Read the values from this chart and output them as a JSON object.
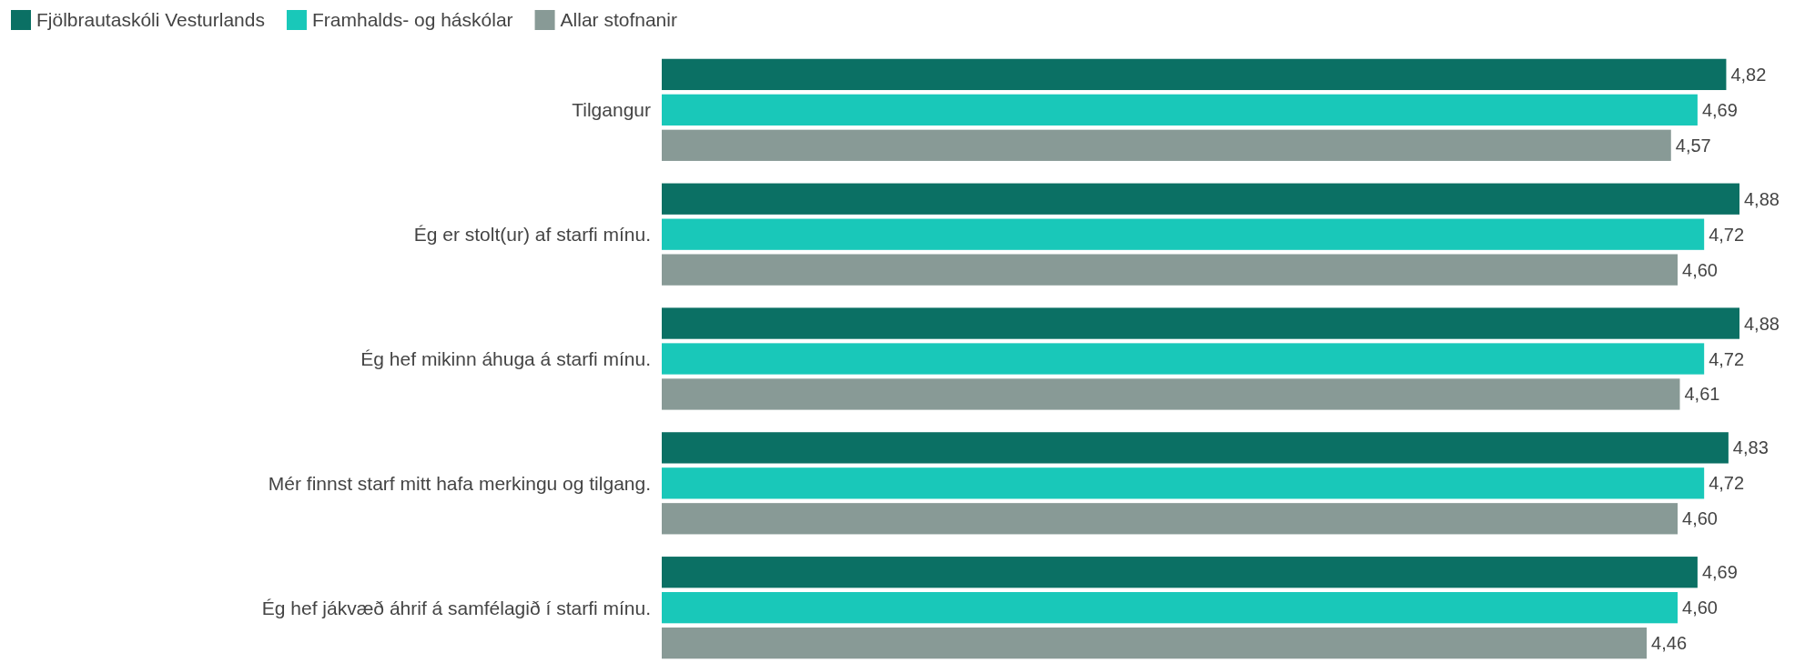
{
  "chart_data": {
    "type": "bar",
    "orientation": "horizontal",
    "categories": [
      "Tilgangur",
      "Ég er stolt(ur) af starfi mínu.",
      "Ég hef mikinn áhuga á starfi mínu.",
      "Mér finnst starf mitt hafa merkingu og tilgang.",
      "Ég hef jákvæð áhrif á samfélagið í starfi mínu."
    ],
    "tick_labels": "y",
    "legend": "top left",
    "series": [
      {
        "name": "Fjölbrautaskóli Vesturlands",
        "color": "#0b7064",
        "values": [
          4.82,
          4.88,
          4.88,
          4.83,
          4.69
        ],
        "value_labels": [
          "4,82",
          "4,88",
          "4,88",
          "4,83",
          "4,69"
        ]
      },
      {
        "name": "Framhalds- og háskólar",
        "color": "#19c8b9",
        "values": [
          4.69,
          4.72,
          4.72,
          4.72,
          4.6
        ],
        "value_labels": [
          "4,69",
          "4,72",
          "4,72",
          "4,72",
          "4,60"
        ]
      },
      {
        "name": "Allar stofnanir",
        "color": "#889a96",
        "values": [
          4.57,
          4.6,
          4.61,
          4.6,
          4.46
        ],
        "value_labels": [
          "4,57",
          "4,60",
          "4,61",
          "4,60",
          "4,46"
        ]
      }
    ]
  }
}
